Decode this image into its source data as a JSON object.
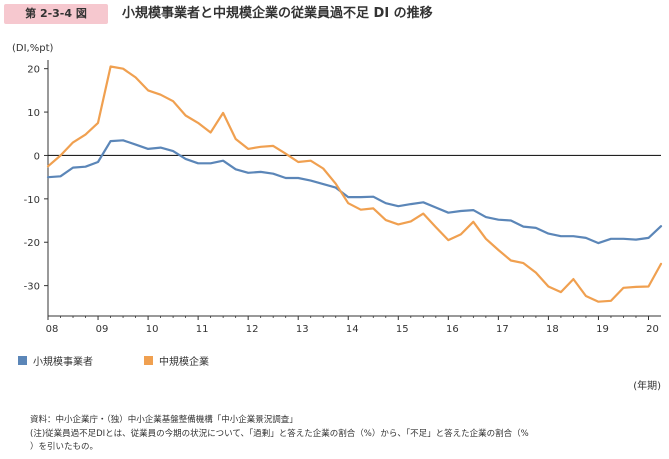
{
  "figure": {
    "number": "第 2-3-4 図",
    "title": "小規模事業者と中規模企業の従業員過不足 DI の推移",
    "y_unit": "(DI,%pt)",
    "x_unit": "(年期)"
  },
  "notes": {
    "source": "資料：中小企業庁・（独）中小企業基盤整備機構「中小企業景況調査」",
    "note_line1": "(注)従業員過不足DIとは、従業員の今期の状況について、「過剰」と答えた企業の割合（%）から、「不足」と答えた企業の割合（%",
    "note_line2": "）を引いたもの。"
  },
  "chart_data": {
    "type": "line",
    "title": "小規模事業者と中規模企業の従業員過不足 DI の推移",
    "ylabel": "(DI,%pt)",
    "xlabel": "(年期)",
    "ylim": [
      -37,
      22
    ],
    "xlim": [
      2008.0,
      2020.25
    ],
    "yticks": [
      20,
      10,
      0,
      -10,
      -20,
      -30
    ],
    "xticks": [
      "08",
      "09",
      "10",
      "11",
      "12",
      "13",
      "14",
      "15",
      "16",
      "17",
      "18",
      "19",
      "20"
    ],
    "grid": false,
    "legend_position": "bottom-left",
    "x": [
      2008.0,
      2008.25,
      2008.5,
      2008.75,
      2009.0,
      2009.25,
      2009.5,
      2009.75,
      2010.0,
      2010.25,
      2010.5,
      2010.75,
      2011.0,
      2011.25,
      2011.5,
      2011.75,
      2012.0,
      2012.25,
      2012.5,
      2012.75,
      2013.0,
      2013.25,
      2013.5,
      2013.75,
      2014.0,
      2014.25,
      2014.5,
      2014.75,
      2015.0,
      2015.25,
      2015.5,
      2015.75,
      2016.0,
      2016.25,
      2016.5,
      2016.75,
      2017.0,
      2017.25,
      2017.5,
      2017.75,
      2018.0,
      2018.25,
      2018.5,
      2018.75,
      2019.0,
      2019.25,
      2019.5,
      2019.75,
      2020.0,
      2020.25
    ],
    "series": [
      {
        "name": "小規模事業者",
        "color": "#5b86b8",
        "values": [
          -5.0,
          -4.8,
          -2.8,
          -2.6,
          -1.5,
          3.3,
          3.5,
          2.5,
          1.5,
          1.8,
          1.0,
          -0.8,
          -1.8,
          -1.8,
          -1.2,
          -3.2,
          -4.0,
          -3.8,
          -4.2,
          -5.2,
          -5.2,
          -5.8,
          -6.6,
          -7.4,
          -9.6,
          -9.6,
          -9.5,
          -11.0,
          -11.7,
          -11.2,
          -10.8,
          -12.0,
          -13.2,
          -12.8,
          -12.6,
          -14.2,
          -14.8,
          -15.0,
          -16.4,
          -16.7,
          -18.0,
          -18.6,
          -18.6,
          -19.0,
          -20.2,
          -19.2,
          -19.2,
          -19.4,
          -19.0,
          -16.3
        ]
      },
      {
        "name": "中規模企業",
        "color": "#f0a050",
        "values": [
          -2.5,
          0.0,
          3.0,
          4.8,
          7.5,
          20.5,
          20.0,
          18.0,
          15.0,
          14.0,
          12.5,
          9.2,
          7.5,
          5.3,
          9.8,
          3.8,
          1.5,
          2.0,
          2.2,
          0.4,
          -1.5,
          -1.2,
          -3.0,
          -6.5,
          -11.0,
          -12.5,
          -12.2,
          -14.9,
          -15.9,
          -15.2,
          -13.4,
          -16.5,
          -19.5,
          -18.2,
          -15.3,
          -19.2,
          -21.8,
          -24.2,
          -24.8,
          -27.0,
          -30.2,
          -31.5,
          -28.5,
          -32.4,
          -33.7,
          -33.5,
          -30.5,
          -30.3,
          -30.2,
          -25.0
        ]
      }
    ]
  }
}
